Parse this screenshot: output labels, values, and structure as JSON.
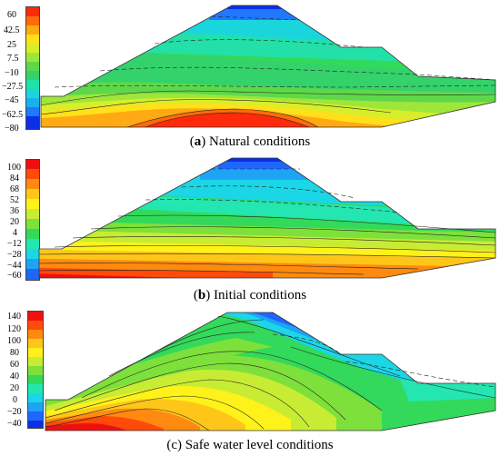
{
  "panels": [
    {
      "id": "a",
      "letter": "a",
      "caption_prefix": "(",
      "caption_text": ") Natural conditions",
      "legend_values": [
        "60",
        "42.5",
        "25",
        "7.5",
        "−10",
        "−27.5",
        "−45",
        "−62.5",
        "−80"
      ],
      "colors": [
        "#0000cc",
        "#0a2fe6",
        "#1f66ff",
        "#1ea3f5",
        "#1bd6e6",
        "#23e6b0",
        "#33d95a",
        "#7ee03b",
        "#c8ec33",
        "#fff21a",
        "#ffc61a",
        "#ff8a0f",
        "#ff4a0a",
        "#ee1010"
      ]
    },
    {
      "id": "b",
      "letter": "b",
      "caption_prefix": "(",
      "caption_text": ") Initial conditions",
      "legend_values": [
        "100",
        "84",
        "68",
        "52",
        "36",
        "20",
        "4",
        "−12",
        "−28",
        "−44",
        "−60"
      ],
      "colors": [
        "#0000cc",
        "#0a2fe6",
        "#1f66ff",
        "#1ea3f5",
        "#1bd6e6",
        "#23e6b0",
        "#33d95a",
        "#7ee03b",
        "#c8ec33",
        "#fff21a",
        "#ffc61a",
        "#ff8a0f",
        "#ff4a0a",
        "#ee1010"
      ]
    },
    {
      "id": "c",
      "letter": "",
      "caption_prefix": "",
      "caption_text": "(c) Safe water level conditions",
      "legend_values": [
        "140",
        "120",
        "100",
        "80",
        "60",
        "40",
        "20",
        "0",
        "−20",
        "−40"
      ],
      "colors": [
        "#0000cc",
        "#0a2fe6",
        "#1f66ff",
        "#1ea3f5",
        "#1bd6e6",
        "#23e6b0",
        "#33d95a",
        "#7ee03b",
        "#c8ec33",
        "#fff21a",
        "#ffc61a",
        "#ff8a0f",
        "#ff4a0a",
        "#ee1010"
      ]
    }
  ]
}
